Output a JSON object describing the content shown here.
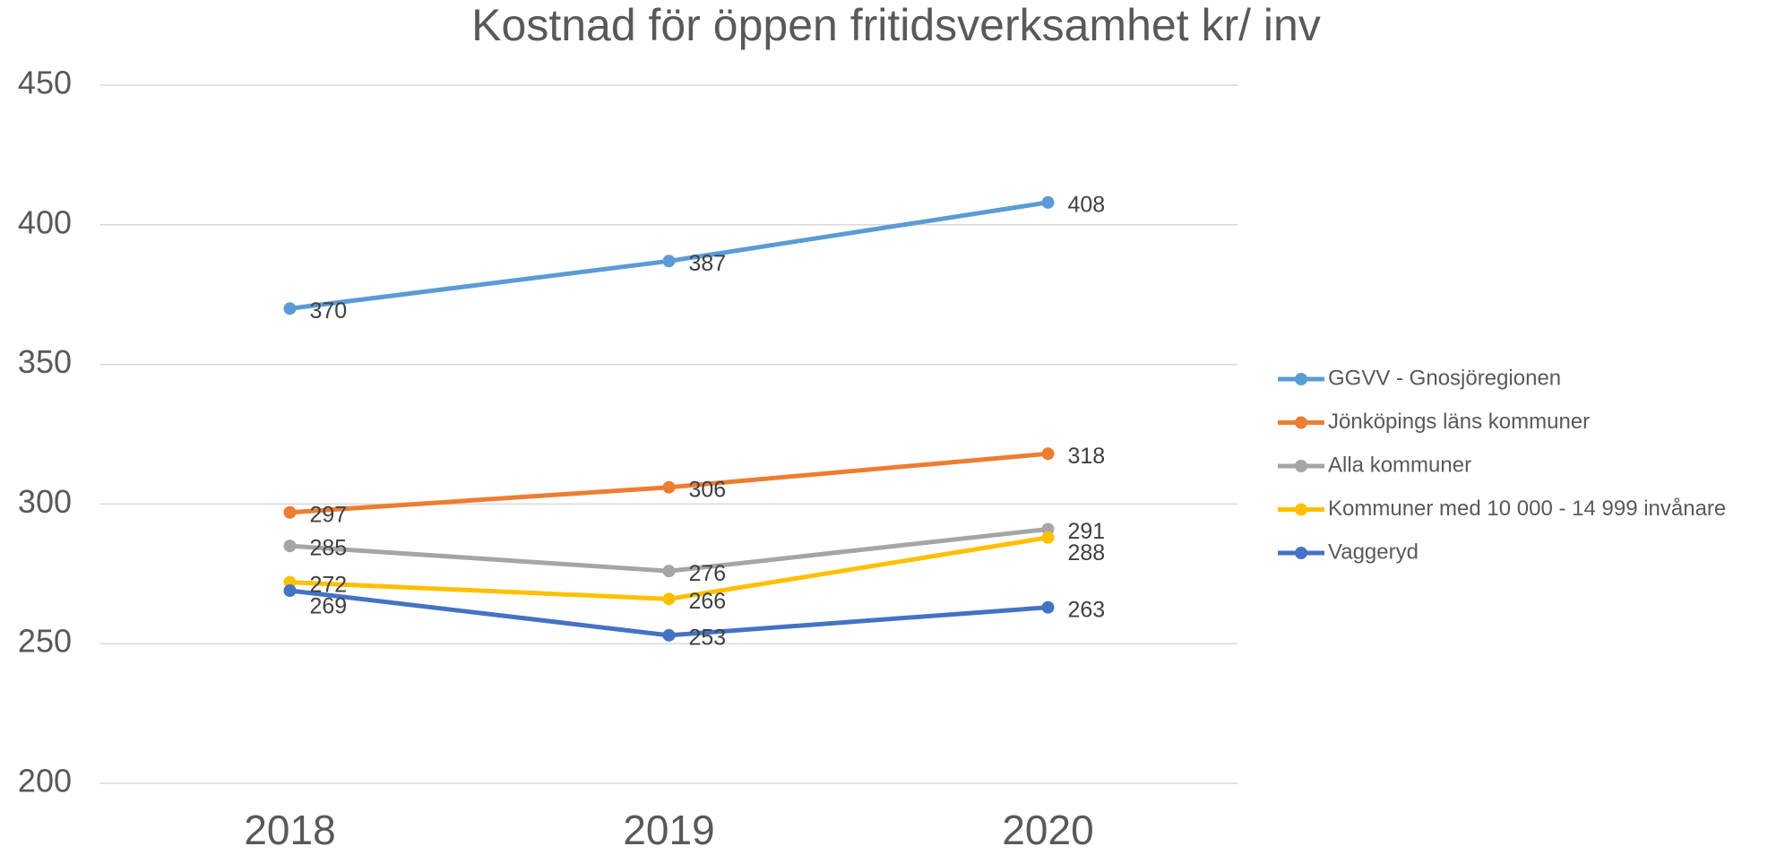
{
  "chart_data": {
    "type": "line",
    "title": "Kostnad för  öppen fritidsverksamhet kr/ inv",
    "categories": [
      "2018",
      "2019",
      "2020"
    ],
    "series": [
      {
        "name": "GGVV - Gnosjöregionen",
        "color": "#5b9bd5",
        "values": [
          370,
          387,
          408
        ]
      },
      {
        "name": "Jönköpings läns kommuner",
        "color": "#ed7d31",
        "values": [
          297,
          306,
          318
        ]
      },
      {
        "name": "Alla kommuner",
        "color": "#a5a5a5",
        "values": [
          285,
          276,
          291
        ]
      },
      {
        "name": "Kommuner med 10 000 - 14 999 invånare",
        "color": "#ffc000",
        "values": [
          272,
          266,
          288
        ]
      },
      {
        "name": "Vaggeryd",
        "color": "#4472c4",
        "values": [
          269,
          253,
          263
        ]
      }
    ],
    "ylim": [
      200,
      450
    ],
    "yticks": [
      200,
      250,
      300,
      350,
      400,
      450
    ],
    "grid": true,
    "legend": "right"
  }
}
